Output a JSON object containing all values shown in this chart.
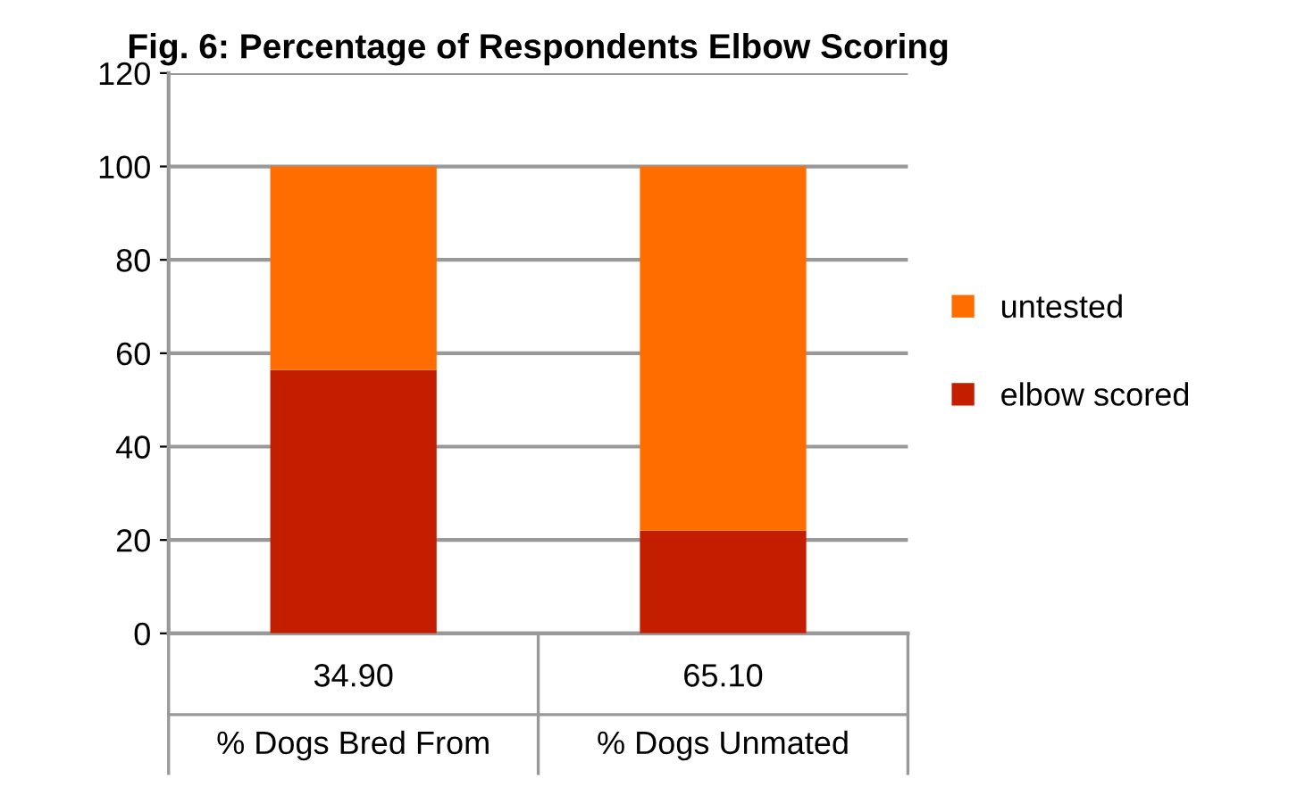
{
  "chart_data": {
    "type": "bar",
    "title": "Fig. 6: Percentage of Respondents Elbow Scoring",
    "categories": [
      "34.90\n% Dogs Bred From",
      "65.10\n% Dogs Unmated"
    ],
    "stacked": true,
    "series": [
      {
        "name": "elbow scored",
        "color": "#c41e00",
        "values": [
          56.4,
          22
        ]
      },
      {
        "name": "untested",
        "color": "#ff6d00",
        "values": [
          43.6,
          78
        ]
      }
    ],
    "ylim": [
      0,
      120
    ],
    "yticks": [
      0,
      20,
      40,
      60,
      80,
      100,
      120
    ],
    "grid": "y",
    "legend": "right"
  }
}
